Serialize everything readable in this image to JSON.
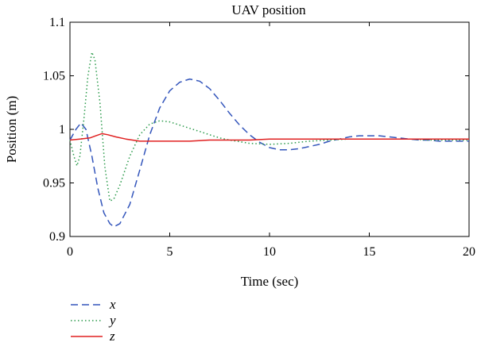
{
  "chart_data": {
    "type": "line",
    "title": "UAV position",
    "xlabel": "Time (sec)",
    "ylabel": "Position (m)",
    "xlim": [
      0,
      20
    ],
    "ylim": [
      0.9,
      1.1
    ],
    "xticks": [
      0,
      5,
      10,
      15,
      20
    ],
    "xtick_labels": [
      "0",
      "5",
      "10",
      "15",
      "20"
    ],
    "yticks": [
      0.9,
      0.95,
      1.0,
      1.05,
      1.1
    ],
    "ytick_labels": [
      "0.9",
      "0.95",
      "1",
      "1.05",
      "1.1"
    ],
    "grid": false,
    "legend_placement": "below",
    "series": [
      {
        "name": "x",
        "color": "#3355bb",
        "style": "dashed",
        "points": [
          [
            0,
            0.99
          ],
          [
            0.3,
            1.0
          ],
          [
            0.55,
            1.006
          ],
          [
            0.8,
            1.0
          ],
          [
            1.1,
            0.975
          ],
          [
            1.4,
            0.945
          ],
          [
            1.7,
            0.922
          ],
          [
            2.0,
            0.912
          ],
          [
            2.2,
            0.909
          ],
          [
            2.5,
            0.912
          ],
          [
            3.0,
            0.93
          ],
          [
            3.5,
            0.962
          ],
          [
            4.0,
            0.995
          ],
          [
            4.5,
            1.02
          ],
          [
            5.0,
            1.036
          ],
          [
            5.5,
            1.044
          ],
          [
            6.0,
            1.047
          ],
          [
            6.5,
            1.045
          ],
          [
            7.0,
            1.038
          ],
          [
            7.5,
            1.027
          ],
          [
            8.0,
            1.015
          ],
          [
            8.5,
            1.004
          ],
          [
            9.0,
            0.995
          ],
          [
            9.5,
            0.988
          ],
          [
            10.0,
            0.983
          ],
          [
            10.5,
            0.981
          ],
          [
            11.0,
            0.981
          ],
          [
            11.5,
            0.982
          ],
          [
            12.0,
            0.984
          ],
          [
            12.5,
            0.986
          ],
          [
            13.0,
            0.989
          ],
          [
            13.5,
            0.991
          ],
          [
            14.0,
            0.993
          ],
          [
            14.5,
            0.994
          ],
          [
            15.0,
            0.994
          ],
          [
            15.5,
            0.994
          ],
          [
            16.0,
            0.993
          ],
          [
            16.5,
            0.992
          ],
          [
            17.0,
            0.991
          ],
          [
            17.5,
            0.99
          ],
          [
            18.0,
            0.99
          ],
          [
            18.5,
            0.989
          ],
          [
            19.0,
            0.989
          ],
          [
            19.5,
            0.989
          ],
          [
            20.0,
            0.989
          ]
        ]
      },
      {
        "name": "y",
        "color": "#2a9a4a",
        "style": "dotted",
        "points": [
          [
            0,
            0.99
          ],
          [
            0.2,
            0.975
          ],
          [
            0.35,
            0.966
          ],
          [
            0.5,
            0.975
          ],
          [
            0.7,
            1.01
          ],
          [
            0.9,
            1.05
          ],
          [
            1.1,
            1.072
          ],
          [
            1.25,
            1.065
          ],
          [
            1.5,
            1.025
          ],
          [
            1.75,
            0.965
          ],
          [
            2.0,
            0.933
          ],
          [
            2.2,
            0.935
          ],
          [
            2.5,
            0.948
          ],
          [
            3.0,
            0.975
          ],
          [
            3.5,
            0.995
          ],
          [
            4.0,
            1.005
          ],
          [
            4.5,
            1.008
          ],
          [
            5.0,
            1.007
          ],
          [
            5.5,
            1.004
          ],
          [
            6.0,
            1.001
          ],
          [
            6.5,
            0.998
          ],
          [
            7.0,
            0.995
          ],
          [
            7.5,
            0.992
          ],
          [
            8.0,
            0.99
          ],
          [
            9.0,
            0.987
          ],
          [
            10.0,
            0.986
          ],
          [
            11.0,
            0.987
          ],
          [
            12.0,
            0.989
          ],
          [
            13.0,
            0.99
          ],
          [
            14.0,
            0.991
          ],
          [
            15.0,
            0.991
          ],
          [
            16.0,
            0.991
          ],
          [
            17.0,
            0.991
          ],
          [
            18.0,
            0.99
          ],
          [
            19.0,
            0.99
          ],
          [
            20.0,
            0.99
          ]
        ]
      },
      {
        "name": "z",
        "color": "#e02020",
        "style": "solid",
        "points": [
          [
            0,
            0.99
          ],
          [
            0.5,
            0.991
          ],
          [
            1.0,
            0.992
          ],
          [
            1.3,
            0.994
          ],
          [
            1.6,
            0.996
          ],
          [
            1.9,
            0.995
          ],
          [
            2.3,
            0.993
          ],
          [
            2.8,
            0.991
          ],
          [
            3.5,
            0.989
          ],
          [
            4.0,
            0.989
          ],
          [
            5.0,
            0.989
          ],
          [
            6.0,
            0.989
          ],
          [
            7.0,
            0.99
          ],
          [
            8.0,
            0.99
          ],
          [
            9.0,
            0.99
          ],
          [
            10.0,
            0.991
          ],
          [
            11.0,
            0.991
          ],
          [
            12.0,
            0.991
          ],
          [
            13.0,
            0.991
          ],
          [
            14.0,
            0.991
          ],
          [
            15.0,
            0.991
          ],
          [
            16.0,
            0.991
          ],
          [
            17.0,
            0.991
          ],
          [
            18.0,
            0.991
          ],
          [
            19.0,
            0.991
          ],
          [
            20.0,
            0.991
          ]
        ]
      }
    ]
  }
}
